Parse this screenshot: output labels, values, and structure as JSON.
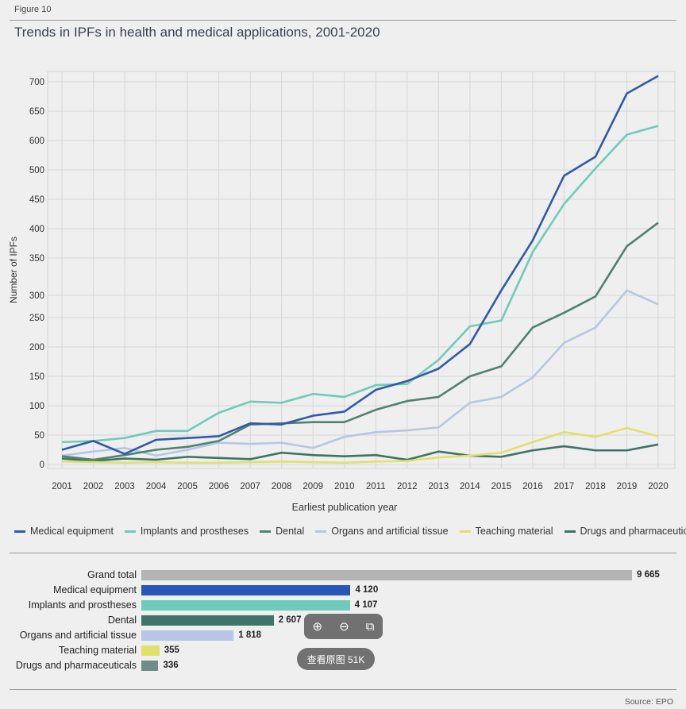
{
  "figure_label": "Figure 10",
  "source": "Source: EPO",
  "overlay": {
    "zoom_in_icon": "zoom-in-icon",
    "zoom_out_icon": "zoom-out-icon",
    "fit_icon": "fit-screen-icon",
    "view_original_label": "查看原图 51K"
  },
  "chart_data": [
    {
      "type": "line",
      "title": "Trends in IPFs in health and medical applications, 2001-2020",
      "xlabel": "Earliest publication year",
      "ylabel": "Number of IPFs",
      "x": [
        "2001",
        "2002",
        "2003",
        "2004",
        "2005",
        "2006",
        "2007",
        "2008",
        "2009",
        "2010",
        "2011",
        "2012",
        "2013",
        "2014",
        "2015",
        "2016",
        "2017",
        "2018",
        "2019",
        "2020"
      ],
      "ylim": [
        0,
        700
      ],
      "yticks": [
        "0",
        "50",
        "100",
        "150",
        "200",
        "250",
        "300",
        "350",
        "400",
        "450",
        "500",
        "600",
        "650",
        "700"
      ],
      "grid": true,
      "legend_position": "bottom",
      "series": [
        {
          "name": "Medical equipment",
          "color": "#2f5ba8",
          "values": [
            25,
            40,
            18,
            42,
            45,
            48,
            70,
            68,
            83,
            90,
            127,
            142,
            163,
            205,
            295,
            380,
            490,
            545,
            680,
            710
          ]
        },
        {
          "name": "Implants and prostheses",
          "color": "#6fcbb9",
          "values": [
            38,
            40,
            45,
            57,
            57,
            88,
            107,
            105,
            120,
            115,
            135,
            137,
            178,
            235,
            245,
            360,
            442,
            505,
            610,
            625
          ]
        },
        {
          "name": "Dental",
          "color": "#4f8270",
          "values": [
            14,
            8,
            16,
            25,
            30,
            40,
            68,
            70,
            72,
            72,
            93,
            108,
            115,
            150,
            167,
            233,
            258,
            285,
            370,
            410
          ]
        },
        {
          "name": "Organs and artificial tissue",
          "color": "#b6c6e4",
          "values": [
            15,
            22,
            28,
            15,
            25,
            37,
            35,
            37,
            28,
            47,
            55,
            58,
            63,
            105,
            115,
            148,
            207,
            233,
            295,
            272
          ]
        },
        {
          "name": "Teaching material",
          "color": "#e1e06a",
          "values": [
            5,
            4,
            3,
            4,
            3,
            3,
            4,
            5,
            4,
            3,
            5,
            6,
            12,
            15,
            20,
            38,
            55,
            47,
            62,
            48
          ]
        },
        {
          "name": "Drugs and pharmaceuticals",
          "color": "#3f7367",
          "values": [
            10,
            6,
            10,
            8,
            13,
            11,
            9,
            20,
            16,
            14,
            16,
            8,
            22,
            15,
            13,
            24,
            31,
            24,
            24,
            34
          ]
        }
      ]
    },
    {
      "type": "bar",
      "orientation": "horizontal",
      "categories": [
        "Grand total",
        "Medical equipment",
        "Implants and prostheses",
        "Dental",
        "Organs and artificial tissue",
        "Teaching material",
        "Drugs and pharmaceuticals"
      ],
      "values": [
        9665,
        4120,
        4107,
        2607,
        1818,
        355,
        336
      ],
      "value_labels": [
        "9 665",
        "4 120",
        "4 107",
        "2 607",
        "1 818",
        "355",
        "336"
      ],
      "colors": [
        "#b4b4b4",
        "#2856b6",
        "#6fcbb9",
        "#3f7467",
        "#b6c6e4",
        "#e1e06a",
        "#6f8d86"
      ],
      "xlim": [
        0,
        9665
      ]
    }
  ]
}
